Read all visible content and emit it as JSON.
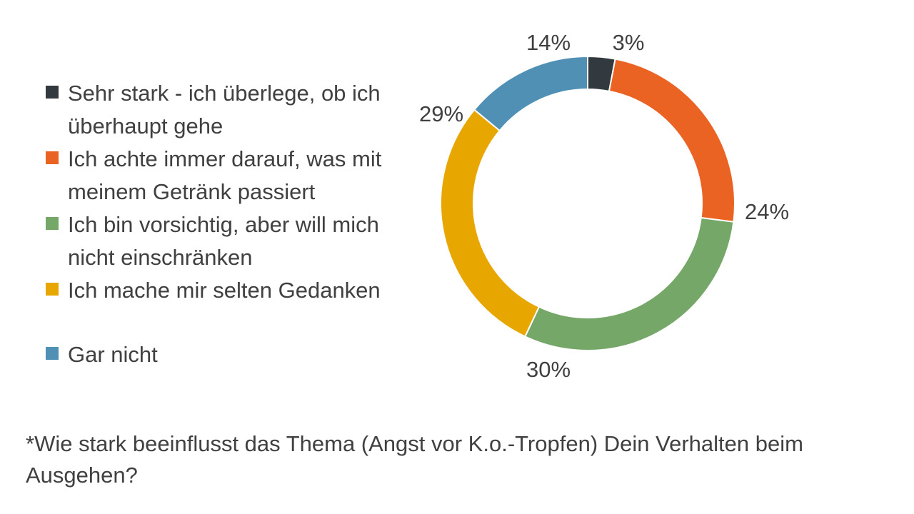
{
  "chart_data": {
    "type": "donut",
    "title": "",
    "slices": [
      {
        "label": "Sehr stark - ich überlege, ob ich überhaupt gehe",
        "value": 3,
        "value_label": "3%",
        "color": "#323A40"
      },
      {
        "label": "Ich achte immer darauf, was mit meinem Getränk passiert",
        "value": 24,
        "value_label": "24%",
        "color": "#EB6323"
      },
      {
        "label": "Ich bin vorsichtig, aber will mich nicht einschränken",
        "value": 30,
        "value_label": "30%",
        "color": "#75A868"
      },
      {
        "label": "Ich mache mir selten Gedanken",
        "value": 29,
        "value_label": "29%",
        "color": "#E8A600"
      },
      {
        "label": "Gar nicht",
        "value": 14,
        "value_label": "14%",
        "color": "#5090B5"
      }
    ],
    "legend_position": "left"
  },
  "footnote": "*Wie stark beeinflusst das Thema (Angst vor K.o.-Tropfen) Dein Verhalten beim Ausgehen?"
}
